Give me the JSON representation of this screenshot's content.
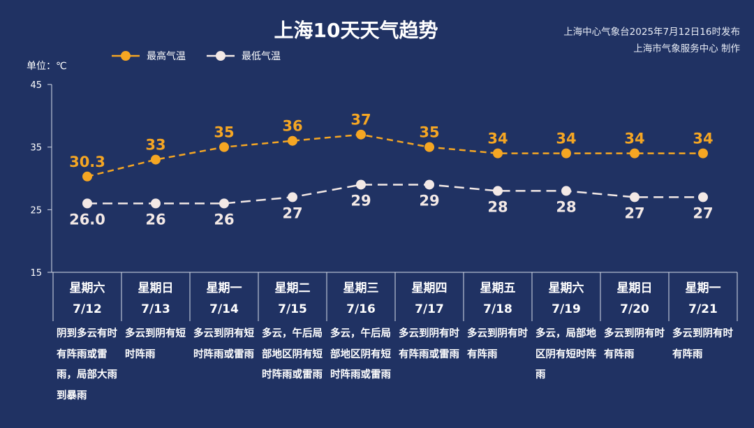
{
  "header": {
    "title": "上海10天天气趋势",
    "publish_line": "上海中心气象台2025年7月12日16时发布",
    "producer_line": "上海市气象服务中心 制作"
  },
  "chart_data": {
    "type": "line",
    "title": "上海10天天气趋势",
    "ylabel": "单位：℃",
    "ylim": [
      15,
      45
    ],
    "yticks": [
      "15",
      "25",
      "35",
      "45"
    ],
    "ytick_values": [
      15,
      25,
      35,
      45
    ],
    "legend_placement": "top-left",
    "categories": [
      "星期六",
      "星期日",
      "星期一",
      "星期二",
      "星期三",
      "星期四",
      "星期五",
      "星期六",
      "星期日",
      "星期一"
    ],
    "dates": [
      "7/12",
      "7/13",
      "7/14",
      "7/15",
      "7/16",
      "7/17",
      "7/18",
      "7/19",
      "7/20",
      "7/21"
    ],
    "series": [
      {
        "name": "最高气温",
        "color": "#f5a623",
        "values": [
          30.3,
          33,
          35,
          36,
          37,
          35,
          34,
          34,
          34,
          34
        ],
        "labels": [
          "30.3",
          "33",
          "35",
          "36",
          "37",
          "35",
          "34",
          "34",
          "34",
          "34"
        ]
      },
      {
        "name": "最低气温",
        "color": "#f3e9e6",
        "values": [
          26.0,
          26,
          26,
          27,
          29,
          29,
          28,
          28,
          27,
          27
        ],
        "labels": [
          "26.0",
          "26",
          "26",
          "27",
          "29",
          "29",
          "28",
          "28",
          "27",
          "27"
        ]
      }
    ],
    "descriptions": [
      "阴到多云有时有阵雨或雷雨，局部大雨到暴雨",
      "多云到阴有短时阵雨",
      "多云到阴有短时阵雨或雷雨",
      "多云，午后局部地区阴有短时阵雨或雷雨",
      "多云，午后局部地区阴有短时阵雨或雷雨",
      "多云到阴有时有阵雨或雷雨",
      "多云到阴有时有阵雨",
      "多云，局部地区阴有短时阵雨",
      "多云到阴有时有阵雨",
      "多云到阴有时有阵雨"
    ]
  }
}
